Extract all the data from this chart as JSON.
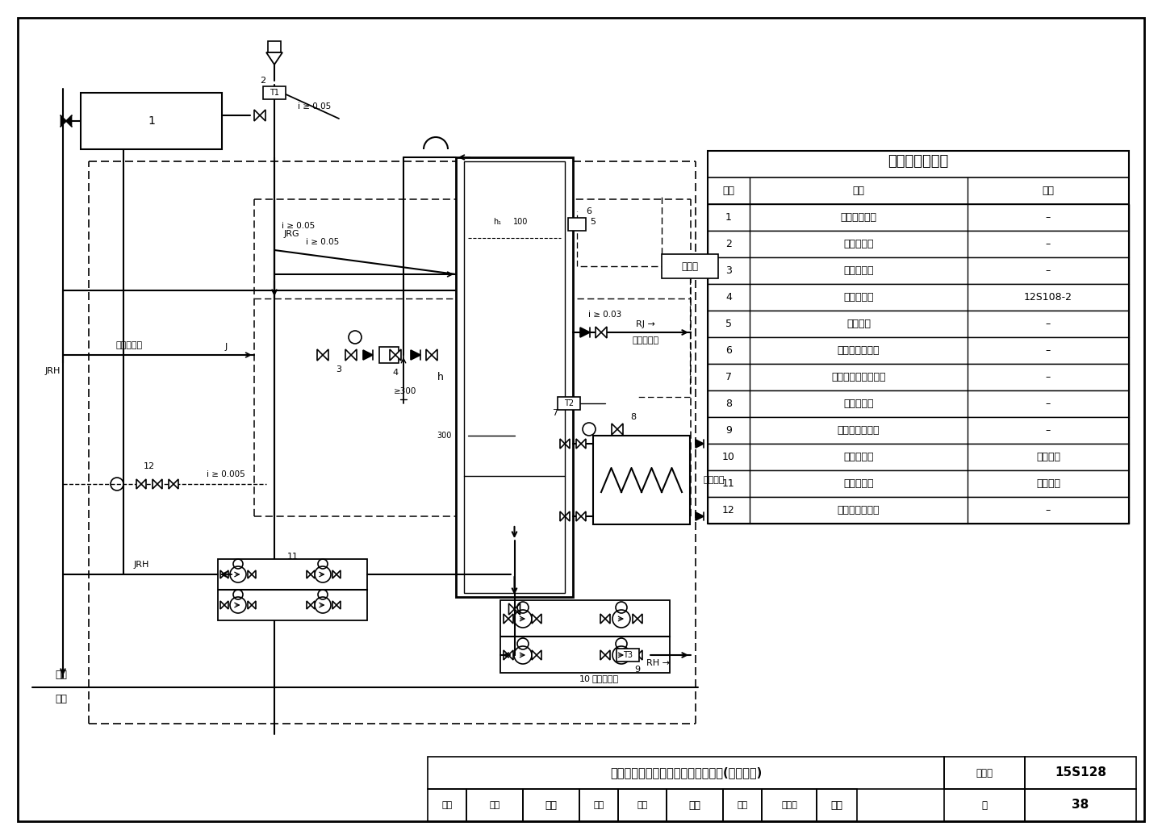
{
  "title": "强制循环单水箱直接加热系统示意图(排回防冻)",
  "figure_number": "15S128",
  "page": "38",
  "table_title": "主要设备材料表",
  "table_headers": [
    "序号",
    "名称",
    "备注"
  ],
  "table_rows": [
    [
      "1",
      "太阳能集热器",
      "–"
    ],
    [
      "2",
      "温度传感器",
      "–"
    ],
    [
      "3",
      "进水电动阀",
      "–"
    ],
    [
      "4",
      "真空破坏器",
      "12S108-2"
    ],
    [
      "5",
      "储热水箱",
      "–"
    ],
    [
      "6",
      "水箱水位传感器",
      "–"
    ],
    [
      "7",
      "储热水箱温度传感器",
      "–"
    ],
    [
      "8",
      "热媒电动阀",
      "–"
    ],
    [
      "9",
      "回水温度传感器",
      "–"
    ],
    [
      "10",
      "回水循环泵",
      "一用一备"
    ],
    [
      "11",
      "集热循环泵",
      "一用一备"
    ],
    [
      "12",
      "防冻排回电动阀",
      "–"
    ]
  ],
  "footer_title": "强制循环单水箱直接加热系统示意图(排回防冻)",
  "footer_fig_label": "图集号",
  "footer_fig_number": "15S128",
  "footer_page_label": "页",
  "footer_page_number": "38",
  "review_label": "审核",
  "review_name1": "张蕃",
  "review_sig": "张磊",
  "check_label": "校对",
  "check_name1": "张哲",
  "check_sig": "张智",
  "design_label": "设计",
  "design_name1": "王岩松",
  "design_sig": "玩乐",
  "bg_color": "#ffffff",
  "line_color": "#000000"
}
